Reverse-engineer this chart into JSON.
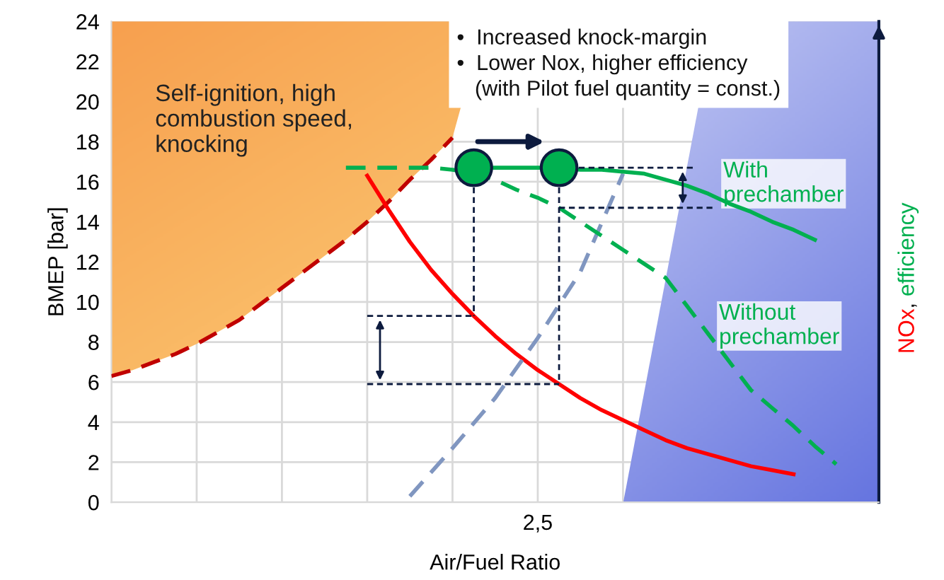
{
  "chart_data": {
    "type": "line",
    "xlabel": "Air/Fuel Ratio",
    "ylabel": "BMEP [bar]",
    "y2label": "NOx, efficiency",
    "categories": [
      null,
      null,
      null,
      null,
      null,
      null,
      null,
      null,
      null,
      null,
      null,
      null,
      null,
      null,
      null,
      null,
      null,
      null,
      null,
      null,
      "2,5",
      null,
      null,
      null,
      null,
      null,
      null,
      null,
      null,
      null,
      null,
      null,
      null,
      null,
      null,
      null,
      null
    ],
    "ylim": [
      0,
      24
    ],
    "yticks": [
      0,
      2,
      4,
      6,
      8,
      10,
      12,
      14,
      16,
      18,
      20,
      22,
      24
    ],
    "grid": true,
    "series": [
      {
        "line_style": "dashed",
        "color": "#c00000",
        "values": [
          6.3,
          6.6,
          7.0,
          7.4,
          7.9,
          8.5,
          9.1,
          9.9,
          10.7,
          11.5,
          12.3,
          13.1,
          14.0,
          15.0,
          16.1,
          17.1,
          18.2,
          null,
          null,
          null,
          null,
          null,
          null,
          null,
          null,
          null,
          null,
          null,
          null,
          null,
          null,
          null,
          null,
          null,
          null,
          null,
          null
        ]
      },
      {
        "line_style": "solid",
        "color": "#ff0000",
        "values": [
          null,
          null,
          null,
          null,
          null,
          null,
          null,
          null,
          null,
          null,
          null,
          null,
          16.3,
          14.6,
          13.0,
          11.6,
          10.4,
          9.3,
          8.3,
          7.4,
          6.6,
          5.9,
          5.2,
          4.6,
          4.1,
          3.6,
          3.1,
          2.7,
          2.4,
          2.1,
          1.8,
          1.6,
          1.4,
          null,
          null,
          null,
          null
        ]
      },
      {
        "line_style": "dashed",
        "color": "#8096c0",
        "values": [
          null,
          null,
          null,
          null,
          null,
          null,
          null,
          null,
          null,
          null,
          null,
          null,
          null,
          null,
          0.3,
          null,
          2.7,
          null,
          5.2,
          null,
          8.2,
          null,
          11.5,
          null,
          16.4,
          null,
          null,
          null,
          null,
          null,
          null,
          null,
          null,
          null,
          null,
          null,
          null
        ]
      },
      {
        "line_style": "dashed",
        "color": "#00b050",
        "name": "Without prechamber",
        "values": [
          null,
          null,
          null,
          null,
          null,
          null,
          null,
          null,
          null,
          null,
          null,
          16.7,
          16.7,
          16.7,
          16.7,
          16.7,
          16.6,
          16.4,
          16.1,
          15.6,
          15.2,
          14.7,
          14.0,
          13.3,
          12.6,
          11.9,
          11.2,
          9.8,
          8.4,
          7.0,
          5.6,
          4.7,
          3.8,
          2.8,
          1.9,
          null,
          null
        ]
      },
      {
        "line_style": "solid",
        "color": "#00b050",
        "name": "With prechamber",
        "values": [
          null,
          null,
          null,
          null,
          null,
          null,
          null,
          null,
          null,
          null,
          null,
          null,
          null,
          null,
          null,
          null,
          null,
          16.7,
          16.7,
          16.7,
          16.7,
          16.7,
          16.6,
          16.6,
          16.5,
          16.4,
          16.1,
          15.8,
          15.4,
          14.9,
          14.5,
          14.0,
          13.6,
          13.1,
          null,
          null,
          null
        ]
      },
      {
        "type": "scatter",
        "marker": "circle",
        "color": "#00b050",
        "values": [
          null,
          null,
          null,
          null,
          null,
          null,
          null,
          null,
          null,
          null,
          null,
          null,
          null,
          null,
          null,
          null,
          null,
          16.7,
          null,
          null,
          null,
          16.7,
          null,
          null,
          null,
          null,
          null,
          null,
          null,
          null,
          null,
          null,
          null,
          null,
          null,
          null,
          null
        ]
      }
    ],
    "annotations": [
      "Self-ignition, high\ncombustion speed,\nknocking",
      "•  Increased knock-margin\n•  Lower Nox, higher efficiency\n   (with Pilot fuel quantity = const.)"
    ]
  }
}
